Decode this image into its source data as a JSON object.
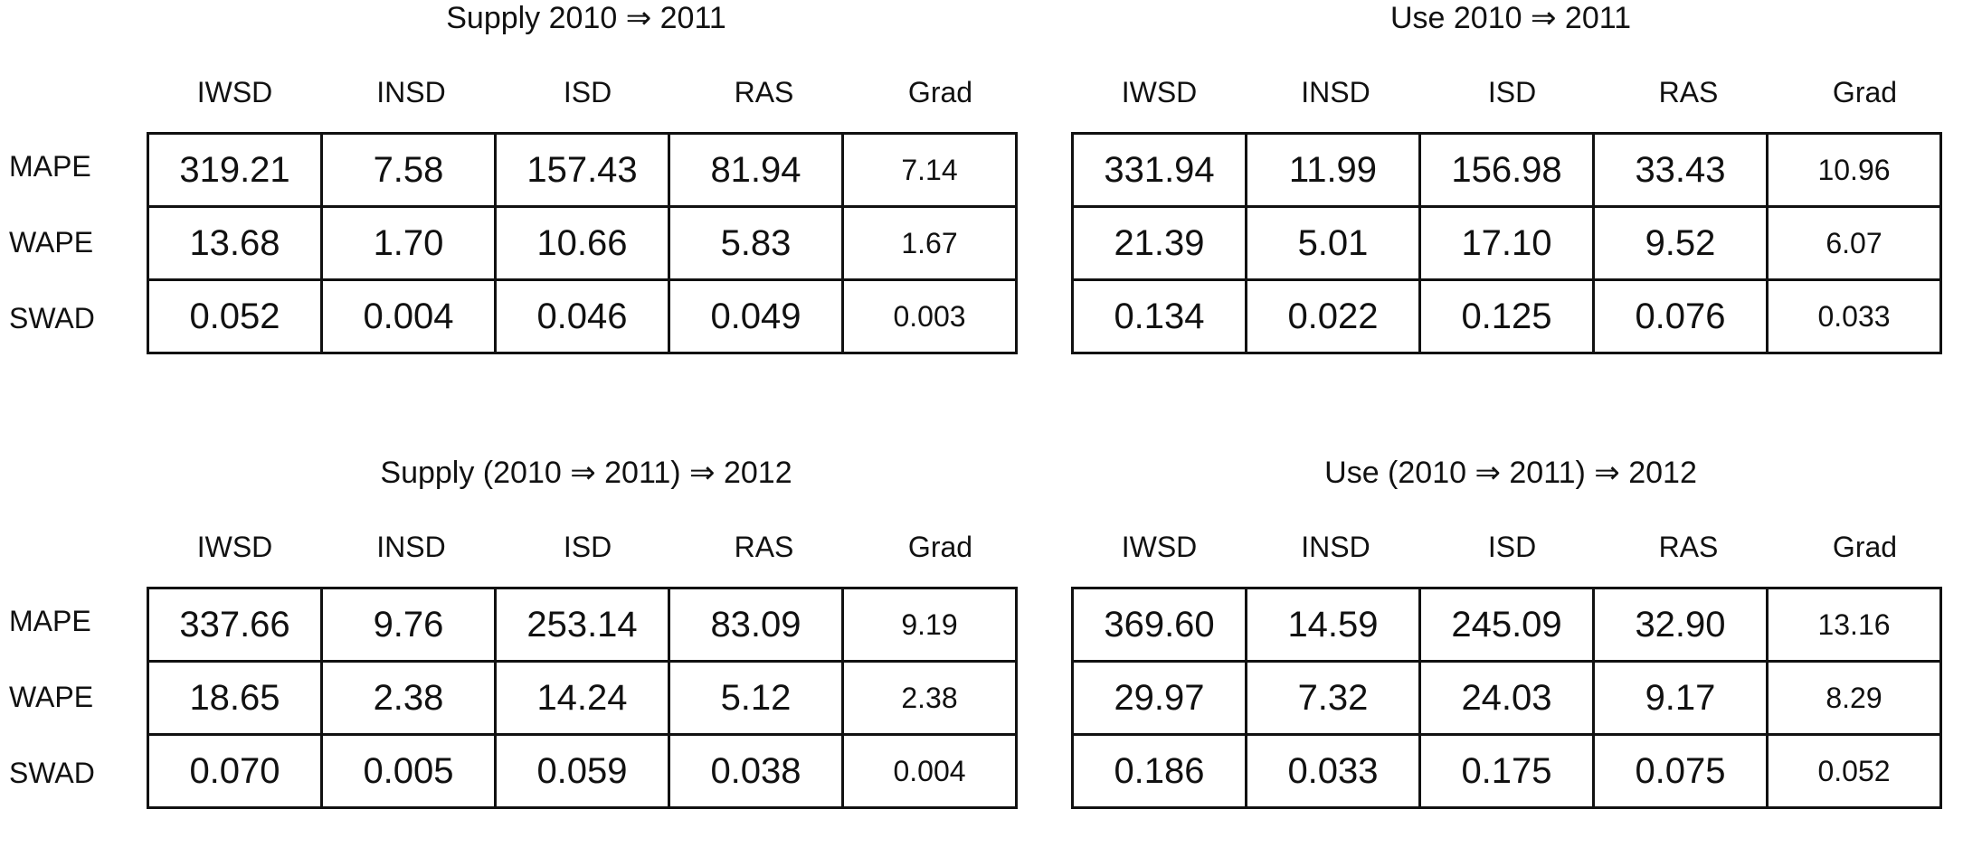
{
  "chart_data": [
    {
      "type": "table",
      "title": "Supply 2010 ⇒ 2011",
      "columns": [
        "IWSD",
        "INSD",
        "ISD",
        "RAS",
        "Grad"
      ],
      "rows": [
        "MAPE",
        "WAPE",
        "SWAD"
      ],
      "values": [
        [
          "319.21",
          "7.58",
          "157.43",
          "81.94",
          "7.14"
        ],
        [
          "13.68",
          "1.70",
          "10.66",
          "5.83",
          "1.67"
        ],
        [
          "0.052",
          "0.004",
          "0.046",
          "0.049",
          "0.003"
        ]
      ]
    },
    {
      "type": "table",
      "title": "Use 2010 ⇒ 2011",
      "columns": [
        "IWSD",
        "INSD",
        "ISD",
        "RAS",
        "Grad"
      ],
      "rows": [
        "MAPE",
        "WAPE",
        "SWAD"
      ],
      "values": [
        [
          "331.94",
          "11.99",
          "156.98",
          "33.43",
          "10.96"
        ],
        [
          "21.39",
          "5.01",
          "17.10",
          "9.52",
          "6.07"
        ],
        [
          "0.134",
          "0.022",
          "0.125",
          "0.076",
          "0.033"
        ]
      ]
    },
    {
      "type": "table",
      "title": "Supply (2010 ⇒ 2011) ⇒ 2012",
      "columns": [
        "IWSD",
        "INSD",
        "ISD",
        "RAS",
        "Grad"
      ],
      "rows": [
        "MAPE",
        "WAPE",
        "SWAD"
      ],
      "values": [
        [
          "337.66",
          "9.76",
          "253.14",
          "83.09",
          "9.19"
        ],
        [
          "18.65",
          "2.38",
          "14.24",
          "5.12",
          "2.38"
        ],
        [
          "0.070",
          "0.005",
          "0.059",
          "0.038",
          "0.004"
        ]
      ]
    },
    {
      "type": "table",
      "title": "Use (2010 ⇒ 2011) ⇒ 2012",
      "columns": [
        "IWSD",
        "INSD",
        "ISD",
        "RAS",
        "Grad"
      ],
      "rows": [
        "MAPE",
        "WAPE",
        "SWAD"
      ],
      "values": [
        [
          "369.60",
          "14.59",
          "245.09",
          "32.90",
          "13.16"
        ],
        [
          "29.97",
          "7.32",
          "24.03",
          "9.17",
          "8.29"
        ],
        [
          "0.186",
          "0.033",
          "0.175",
          "0.075",
          "0.052"
        ]
      ]
    }
  ]
}
